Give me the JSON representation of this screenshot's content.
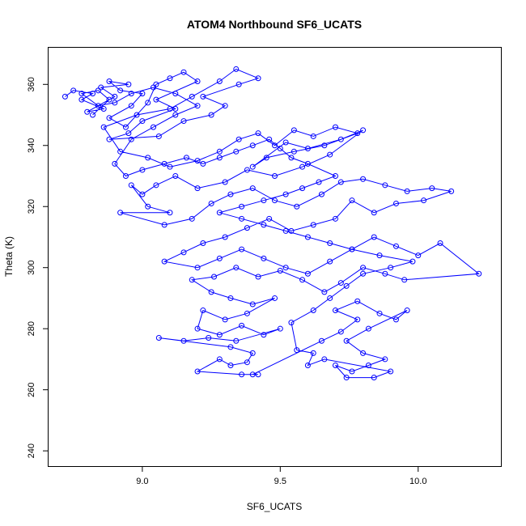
{
  "chart_data": {
    "type": "scatter",
    "title": "ATOM4 Northbound SF6_UCATS",
    "xlabel": "SF6_UCATS",
    "ylabel": "Theta (K)",
    "xlim": [
      8.66,
      10.3
    ],
    "ylim": [
      235,
      372
    ],
    "xticks": [
      9.0,
      9.5,
      10.0
    ],
    "xtick_labels": [
      "9.0",
      "9.5",
      "10.0"
    ],
    "yticks": [
      240,
      260,
      280,
      300,
      320,
      340,
      360
    ],
    "ytick_labels": [
      "240",
      "260",
      "280",
      "300",
      "320",
      "340",
      "360"
    ],
    "grid": false,
    "series": [
      {
        "color": "#0000ff",
        "marker": "open-circle",
        "connected": true,
        "points": [
          [
            8.72,
            356
          ],
          [
            8.75,
            358
          ],
          [
            8.82,
            357
          ],
          [
            8.78,
            355
          ],
          [
            8.86,
            352
          ],
          [
            8.8,
            351
          ],
          [
            8.9,
            356
          ],
          [
            8.85,
            359
          ],
          [
            8.95,
            360
          ],
          [
            8.88,
            361
          ],
          [
            8.92,
            358
          ],
          [
            9.0,
            357
          ],
          [
            8.96,
            353
          ],
          [
            8.88,
            349
          ],
          [
            8.94,
            346
          ],
          [
            9.02,
            354
          ],
          [
            9.05,
            360
          ],
          [
            9.1,
            362
          ],
          [
            9.15,
            364
          ],
          [
            9.2,
            361
          ],
          [
            9.05,
            355
          ],
          [
            9.12,
            352
          ],
          [
            9.0,
            348
          ],
          [
            8.95,
            344
          ],
          [
            8.88,
            342
          ],
          [
            9.06,
            343
          ],
          [
            9.15,
            348
          ],
          [
            9.25,
            350
          ],
          [
            9.3,
            353
          ],
          [
            9.22,
            356
          ],
          [
            9.35,
            360
          ],
          [
            9.42,
            362
          ],
          [
            9.34,
            365
          ],
          [
            9.28,
            361
          ],
          [
            9.18,
            356
          ],
          [
            9.1,
            352
          ],
          [
            8.98,
            350
          ],
          [
            8.86,
            346
          ],
          [
            8.92,
            338
          ],
          [
            9.02,
            336
          ],
          [
            9.1,
            333
          ],
          [
            9.2,
            335
          ],
          [
            9.28,
            338
          ],
          [
            9.35,
            342
          ],
          [
            9.42,
            344
          ],
          [
            9.48,
            340
          ],
          [
            9.55,
            345
          ],
          [
            9.62,
            343
          ],
          [
            9.7,
            346
          ],
          [
            9.78,
            344
          ],
          [
            9.66,
            340
          ],
          [
            9.55,
            338
          ],
          [
            9.45,
            336
          ],
          [
            9.4,
            333
          ],
          [
            9.52,
            341
          ],
          [
            9.6,
            339
          ],
          [
            9.72,
            342
          ],
          [
            9.8,
            345
          ],
          [
            9.68,
            337
          ],
          [
            9.58,
            333
          ],
          [
            9.48,
            330
          ],
          [
            9.38,
            332
          ],
          [
            9.3,
            328
          ],
          [
            9.2,
            326
          ],
          [
            9.12,
            330
          ],
          [
            9.05,
            327
          ],
          [
            9.0,
            324
          ],
          [
            8.96,
            327
          ],
          [
            9.02,
            320
          ],
          [
            9.1,
            318
          ],
          [
            8.92,
            318
          ],
          [
            9.08,
            314
          ],
          [
            9.18,
            316
          ],
          [
            9.25,
            321
          ],
          [
            9.32,
            324
          ],
          [
            9.4,
            326
          ],
          [
            9.48,
            322
          ],
          [
            9.56,
            320
          ],
          [
            9.65,
            324
          ],
          [
            9.72,
            328
          ],
          [
            9.8,
            329
          ],
          [
            9.88,
            327
          ],
          [
            9.96,
            325
          ],
          [
            10.05,
            326
          ],
          [
            10.12,
            325
          ],
          [
            10.02,
            322
          ],
          [
            9.92,
            321
          ],
          [
            9.84,
            318
          ],
          [
            9.76,
            322
          ],
          [
            9.7,
            316
          ],
          [
            9.62,
            314
          ],
          [
            9.54,
            312
          ],
          [
            9.46,
            316
          ],
          [
            9.38,
            313
          ],
          [
            9.3,
            310
          ],
          [
            9.22,
            308
          ],
          [
            9.15,
            305
          ],
          [
            9.08,
            302
          ],
          [
            9.2,
            300
          ],
          [
            9.28,
            303
          ],
          [
            9.36,
            306
          ],
          [
            9.44,
            303
          ],
          [
            9.52,
            300
          ],
          [
            9.6,
            298
          ],
          [
            9.68,
            302
          ],
          [
            9.76,
            306
          ],
          [
            9.84,
            310
          ],
          [
            9.92,
            307
          ],
          [
            10.0,
            304
          ],
          [
            10.08,
            308
          ],
          [
            10.22,
            298
          ],
          [
            9.95,
            296
          ],
          [
            9.88,
            298
          ],
          [
            9.8,
            300
          ],
          [
            9.72,
            295
          ],
          [
            9.66,
            292
          ],
          [
            9.58,
            296
          ],
          [
            9.5,
            299
          ],
          [
            9.42,
            297
          ],
          [
            9.34,
            300
          ],
          [
            9.26,
            297
          ],
          [
            9.18,
            296
          ],
          [
            9.25,
            292
          ],
          [
            9.32,
            290
          ],
          [
            9.4,
            288
          ],
          [
            9.48,
            290
          ],
          [
            9.38,
            285
          ],
          [
            9.3,
            283
          ],
          [
            9.22,
            286
          ],
          [
            9.2,
            280
          ],
          [
            9.28,
            278
          ],
          [
            9.36,
            281
          ],
          [
            9.44,
            278
          ],
          [
            9.5,
            280
          ],
          [
            9.34,
            276
          ],
          [
            9.24,
            277
          ],
          [
            9.15,
            276
          ],
          [
            9.06,
            277
          ],
          [
            9.32,
            274
          ],
          [
            9.4,
            272
          ],
          [
            9.38,
            269
          ],
          [
            9.32,
            268
          ],
          [
            9.28,
            270
          ],
          [
            9.2,
            266
          ],
          [
            9.36,
            265
          ],
          [
            9.42,
            265
          ],
          [
            9.4,
            265
          ],
          [
            9.65,
            276
          ],
          [
            9.72,
            279
          ],
          [
            9.78,
            283
          ],
          [
            9.7,
            286
          ],
          [
            9.78,
            289
          ],
          [
            9.86,
            285
          ],
          [
            9.92,
            283
          ],
          [
            9.96,
            286
          ],
          [
            9.82,
            280
          ],
          [
            9.74,
            276
          ],
          [
            9.8,
            272
          ],
          [
            9.88,
            270
          ],
          [
            9.82,
            268
          ],
          [
            9.76,
            266
          ],
          [
            9.7,
            268
          ],
          [
            9.74,
            264
          ],
          [
            9.84,
            264
          ],
          [
            9.9,
            266
          ],
          [
            9.66,
            270
          ],
          [
            9.6,
            268
          ],
          [
            9.62,
            272
          ],
          [
            9.56,
            273
          ],
          [
            9.54,
            282
          ],
          [
            9.62,
            286
          ],
          [
            9.68,
            290
          ],
          [
            9.74,
            294
          ],
          [
            9.8,
            298
          ],
          [
            9.9,
            300
          ],
          [
            9.98,
            302
          ],
          [
            9.86,
            304
          ],
          [
            9.76,
            306
          ],
          [
            9.68,
            308
          ],
          [
            9.6,
            310
          ],
          [
            9.52,
            312
          ],
          [
            9.44,
            314
          ],
          [
            9.36,
            316
          ],
          [
            9.28,
            318
          ],
          [
            9.36,
            320
          ],
          [
            9.44,
            322
          ],
          [
            9.52,
            324
          ],
          [
            9.58,
            326
          ],
          [
            9.64,
            328
          ],
          [
            9.7,
            330
          ],
          [
            9.6,
            334
          ],
          [
            9.54,
            336
          ],
          [
            9.5,
            339
          ],
          [
            9.46,
            342
          ],
          [
            9.4,
            340
          ],
          [
            9.34,
            338
          ],
          [
            9.28,
            336
          ],
          [
            9.22,
            334
          ],
          [
            9.16,
            336
          ],
          [
            9.08,
            334
          ],
          [
            9.0,
            332
          ],
          [
            8.94,
            330
          ],
          [
            8.9,
            334
          ],
          [
            8.96,
            342
          ],
          [
            9.04,
            346
          ],
          [
            9.12,
            350
          ],
          [
            9.2,
            353
          ],
          [
            9.12,
            357
          ],
          [
            9.04,
            359
          ],
          [
            8.96,
            357
          ],
          [
            8.9,
            354
          ],
          [
            8.84,
            353
          ],
          [
            8.78,
            357
          ],
          [
            8.84,
            358
          ],
          [
            8.88,
            355
          ],
          [
            8.82,
            350
          ]
        ]
      }
    ]
  }
}
